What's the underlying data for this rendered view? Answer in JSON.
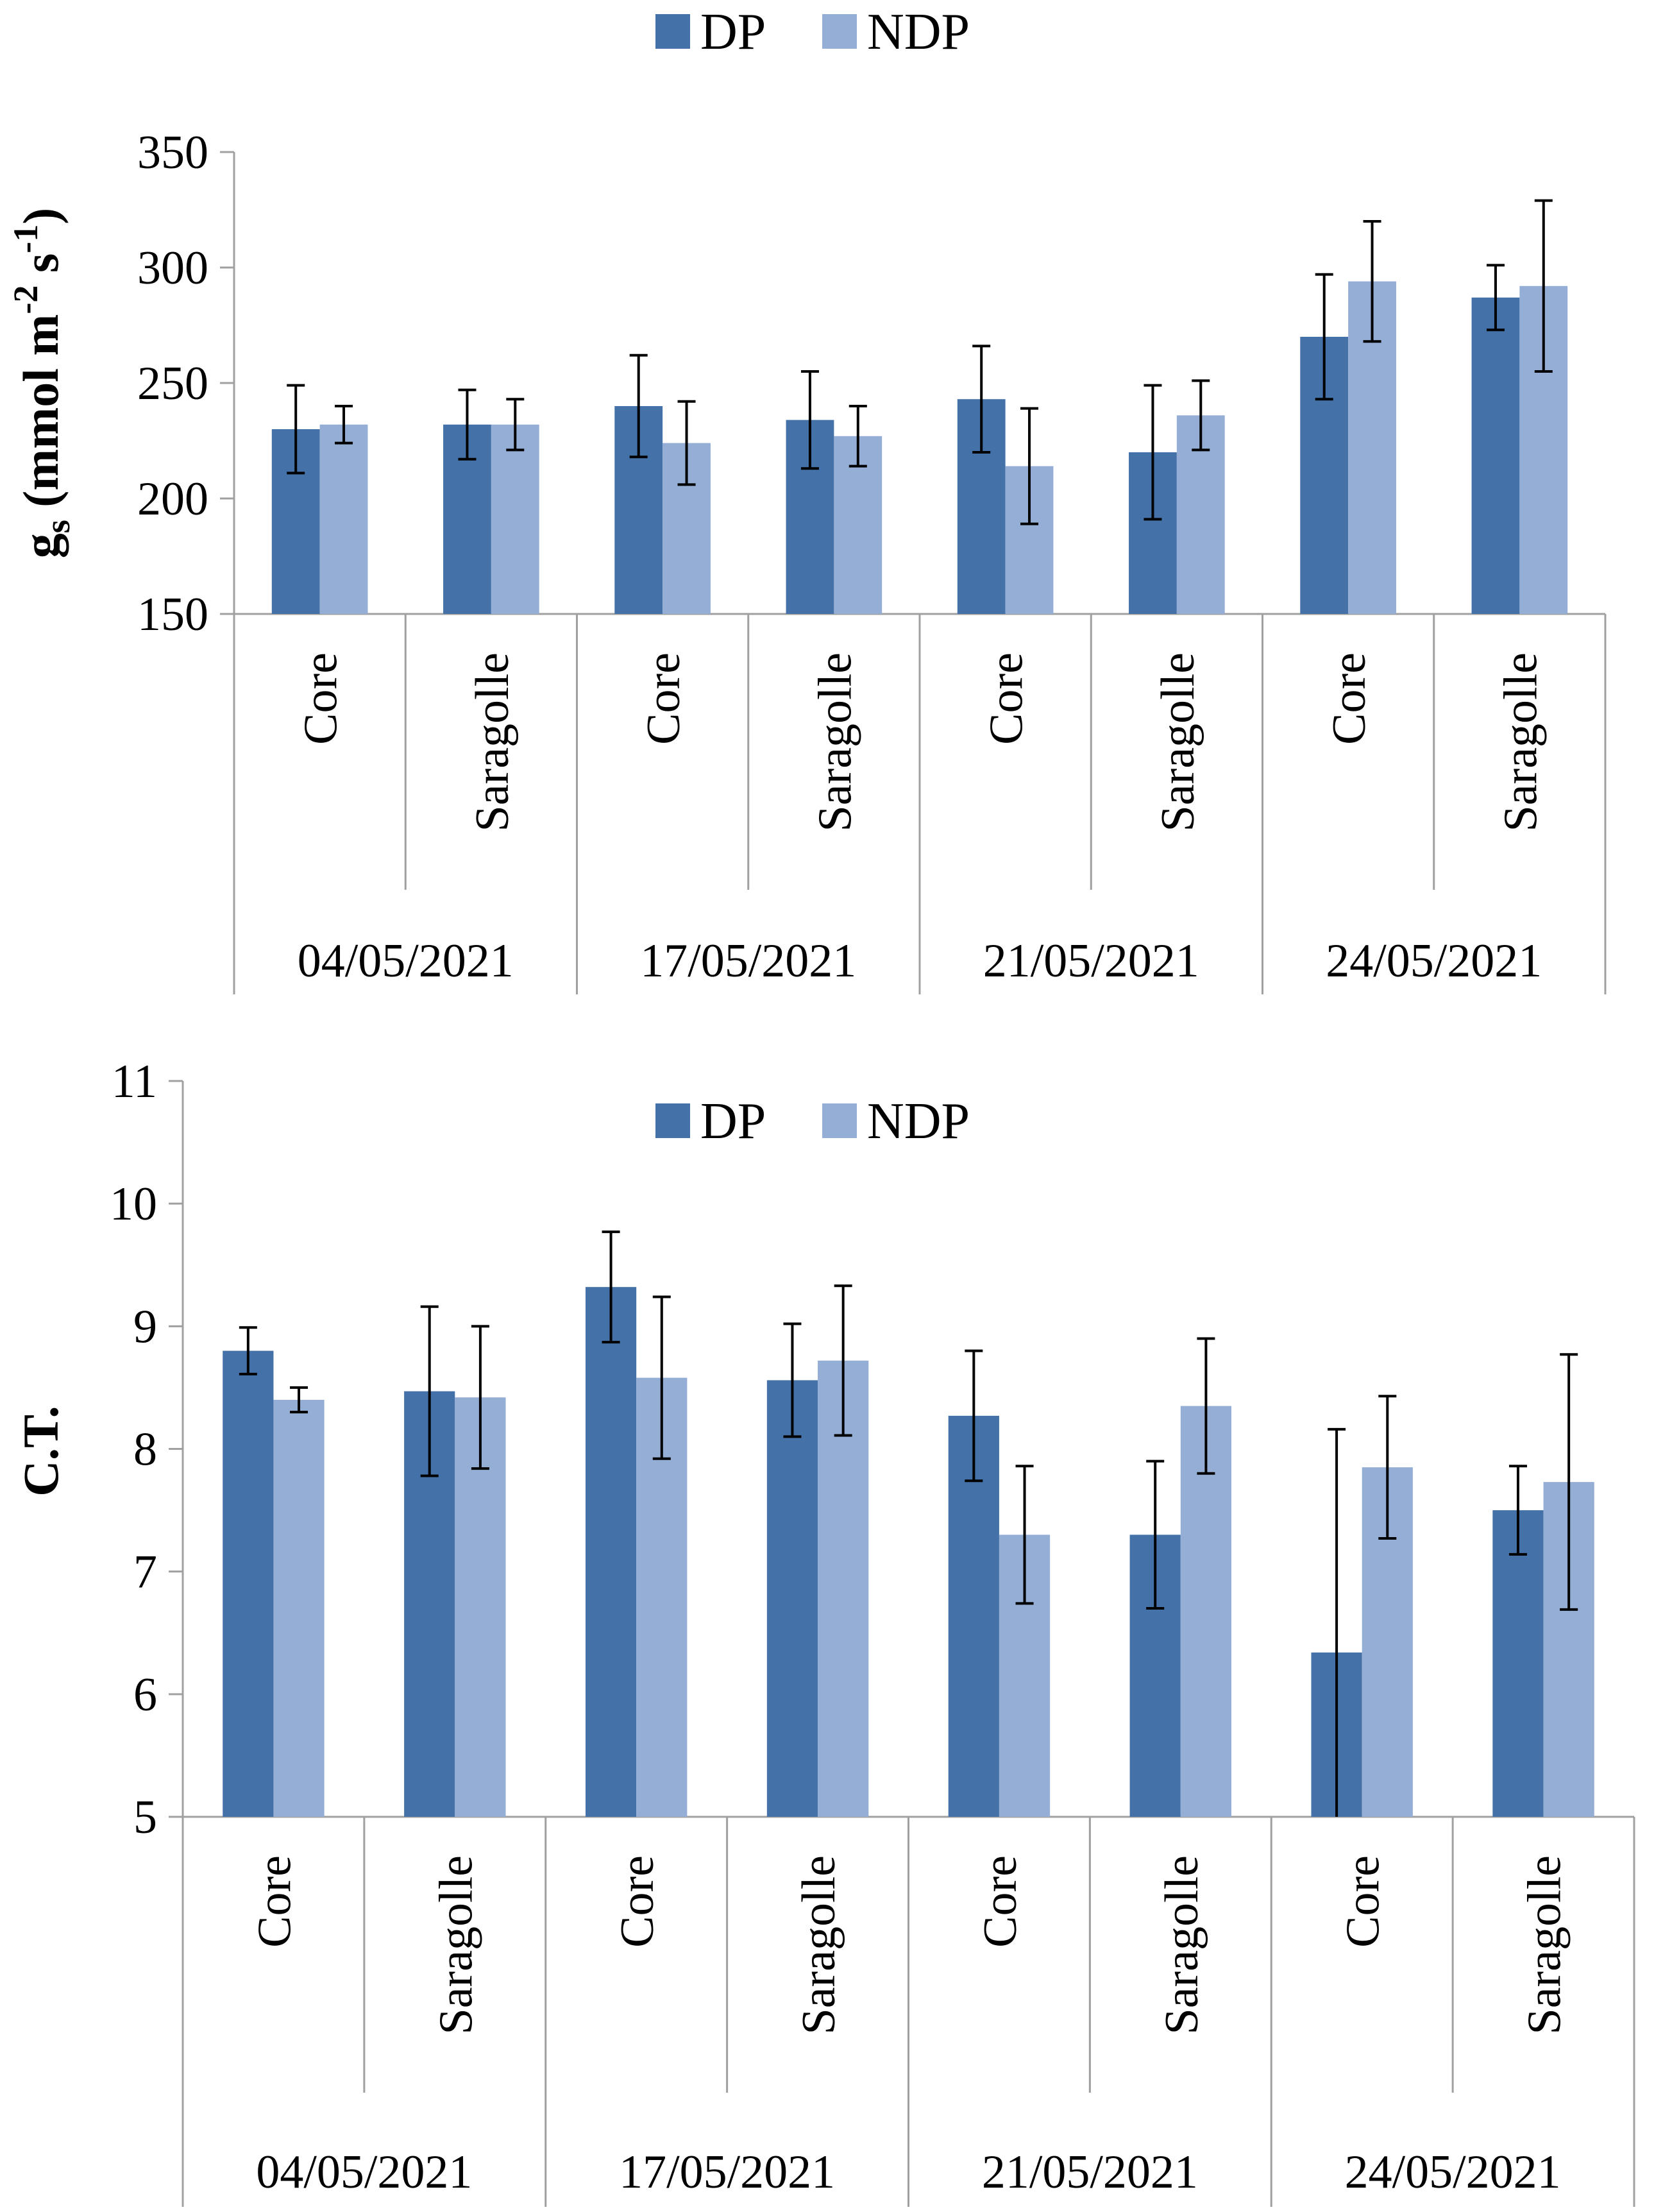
{
  "colors": {
    "DP": "#4472a8",
    "NDP": "#95aed6",
    "axis": "#a0a0a0",
    "errorbar": "#000000"
  },
  "chart_data": [
    {
      "type": "bar",
      "title": "",
      "ylabel_main": "g",
      "ylabel_sub": "s",
      "ylabel_rest": " (mmol m",
      "ylabel_sup1": "-2",
      "ylabel_mid": " s",
      "ylabel_sup2": "-1",
      "ylabel_end": ")",
      "ylim": [
        150,
        350
      ],
      "yticks": [
        150,
        200,
        250,
        300,
        350
      ],
      "legend_position": "top-center",
      "groups": [
        "04/05/2021",
        "17/05/2021",
        "21/05/2021",
        "24/05/2021"
      ],
      "categories": [
        "Core",
        "Saragolle",
        "Core",
        "Saragolle",
        "Core",
        "Saragolle",
        "Core",
        "Saragolle"
      ],
      "series": [
        {
          "name": "DP",
          "values": [
            230,
            232,
            240,
            234,
            243,
            220,
            270,
            287
          ],
          "errors": [
            19,
            15,
            22,
            21,
            23,
            29,
            27,
            14
          ]
        },
        {
          "name": "NDP",
          "values": [
            232,
            232,
            224,
            227,
            214,
            236,
            294,
            292
          ],
          "errors": [
            8,
            11,
            18,
            13,
            25,
            15,
            26,
            37
          ]
        }
      ]
    },
    {
      "type": "bar",
      "title": "",
      "ylabel": "C.T.",
      "ylim": [
        5,
        11
      ],
      "yticks": [
        5,
        6,
        7,
        8,
        9,
        10,
        11
      ],
      "legend_position": "top-center",
      "groups": [
        "04/05/2021",
        "17/05/2021",
        "21/05/2021",
        "24/05/2021"
      ],
      "categories": [
        "Core",
        "Saragolle",
        "Core",
        "Saragolle",
        "Core",
        "Saragolle",
        "Core",
        "Saragolle"
      ],
      "series": [
        {
          "name": "DP",
          "values": [
            8.8,
            8.47,
            9.32,
            8.56,
            8.27,
            7.3,
            6.34,
            7.5
          ],
          "errors": [
            0.19,
            0.69,
            0.45,
            0.46,
            0.53,
            0.6,
            1.82,
            0.36
          ]
        },
        {
          "name": "NDP",
          "values": [
            8.4,
            8.42,
            8.58,
            8.72,
            7.3,
            8.35,
            7.85,
            7.73
          ],
          "errors": [
            0.1,
            0.58,
            0.66,
            0.61,
            0.56,
            0.55,
            0.58,
            1.04
          ]
        }
      ]
    }
  ]
}
